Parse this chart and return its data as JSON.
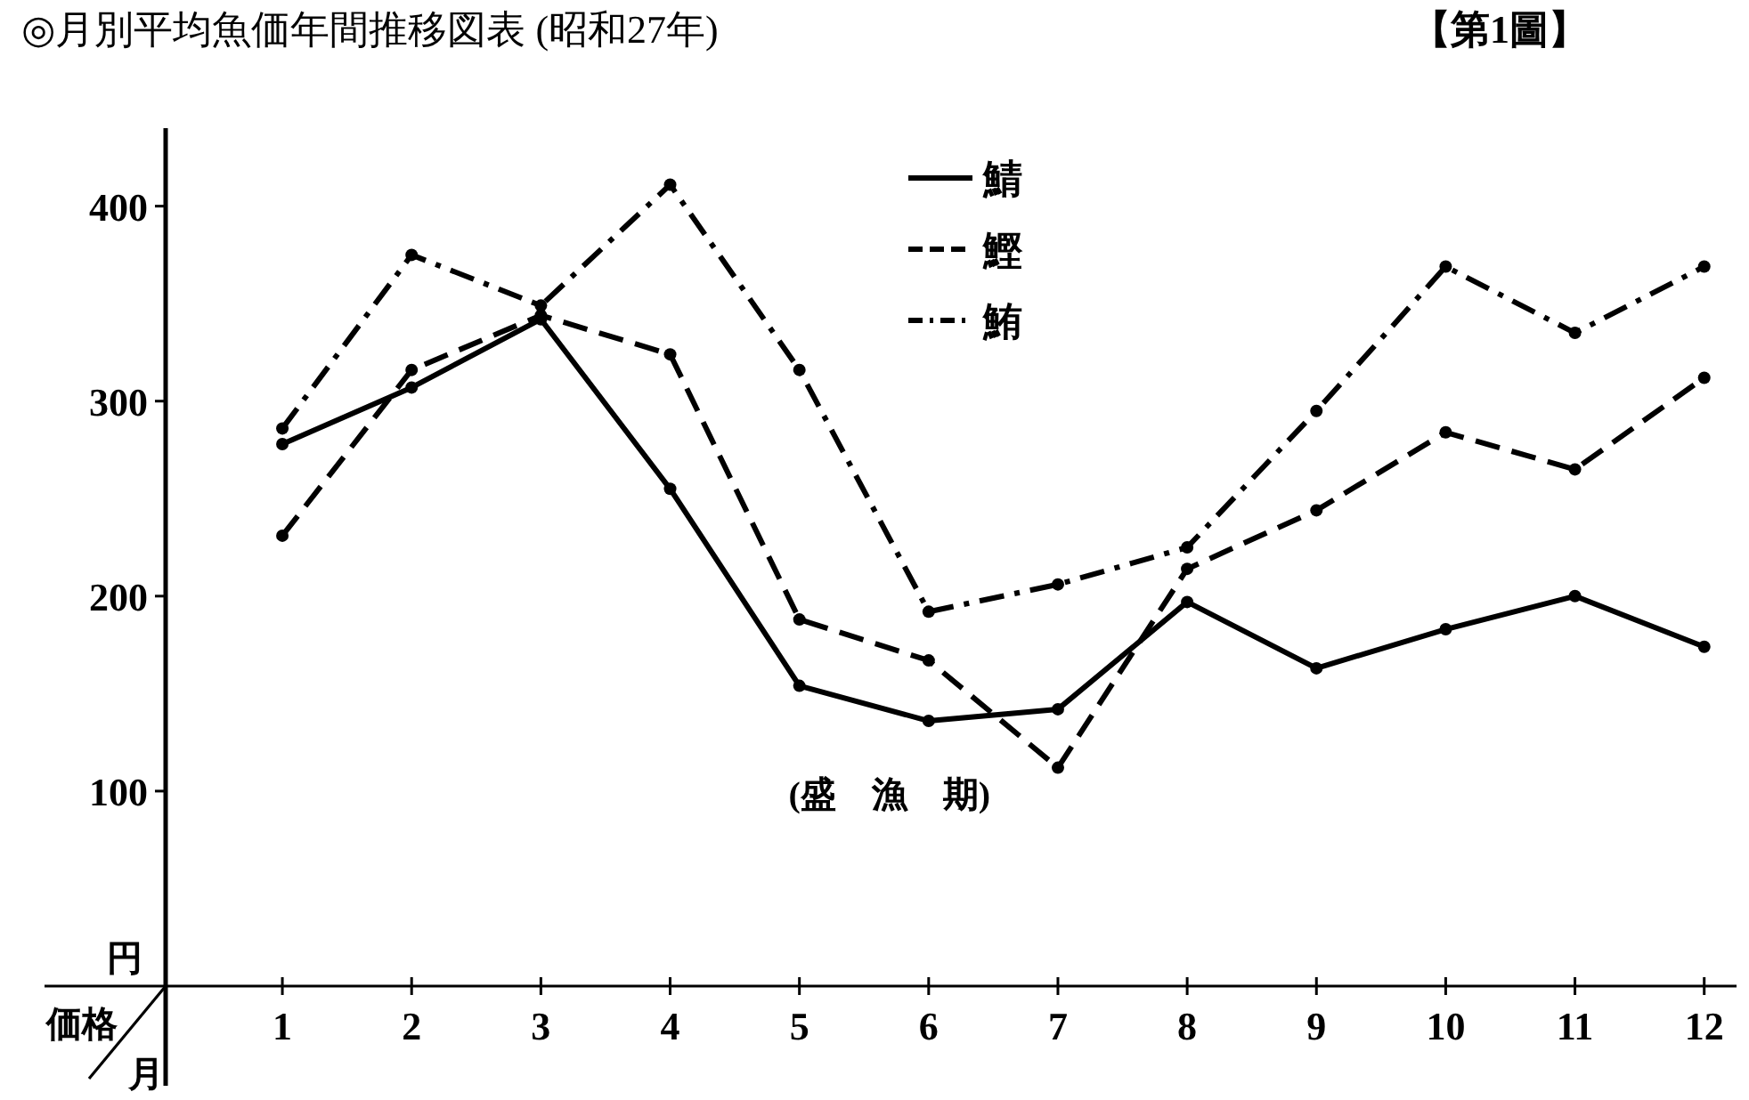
{
  "chart_data": {
    "type": "line",
    "title": "◎月別平均魚価年間推移図表 (昭和27年)",
    "subtitle": "【第1圖】",
    "xlabel": "月",
    "ylabel": "円",
    "annotations": [
      "価格",
      "(盛　漁　期)"
    ],
    "x": [
      1,
      2,
      3,
      4,
      5,
      6,
      7,
      8,
      9,
      10,
      11,
      12
    ],
    "xlim": [
      -0.84,
      12.25
    ],
    "xticks": [
      1,
      2,
      3,
      4,
      5,
      6,
      7,
      8,
      9,
      10,
      11,
      12
    ],
    "series": [
      {
        "name": "鯖",
        "color": "#000000",
        "line_style": "solid",
        "values": [
          278,
          307,
          342,
          255,
          154,
          136,
          142,
          197,
          163,
          183,
          200,
          174
        ]
      },
      {
        "name": "鰹",
        "color": "#000000",
        "line_style": "dashed",
        "values": [
          231,
          316,
          344,
          324,
          188,
          167,
          112,
          214,
          244,
          284,
          265,
          312
        ]
      },
      {
        "name": "鮪",
        "color": "#000000",
        "line_style": "dashdot",
        "values": [
          286,
          375,
          349,
          411,
          316,
          192,
          206,
          225,
          295,
          369,
          335,
          369
        ]
      }
    ],
    "ylim": [
      0,
      440
    ],
    "yticks": [
      100,
      200,
      300,
      400
    ],
    "legend": "top",
    "marker": "circle",
    "grid": false
  }
}
